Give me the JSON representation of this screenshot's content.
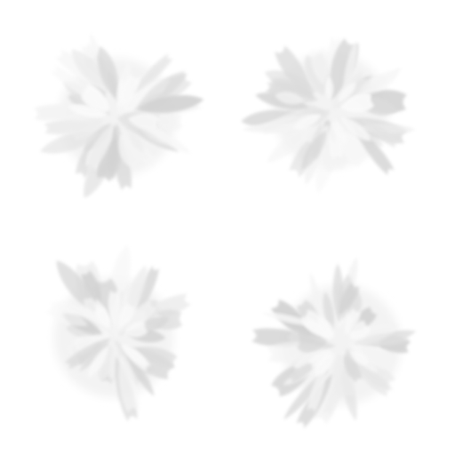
{
  "image": {
    "subject": "four-clusters-of-pale-leaves",
    "background_color": "#ffffff",
    "palette": [
      "#f4f4f4",
      "#ededed",
      "#e4e4e4",
      "#dcdcdc",
      "#d3d3d3",
      "#f8f8f8"
    ],
    "cluster_count": 4
  }
}
